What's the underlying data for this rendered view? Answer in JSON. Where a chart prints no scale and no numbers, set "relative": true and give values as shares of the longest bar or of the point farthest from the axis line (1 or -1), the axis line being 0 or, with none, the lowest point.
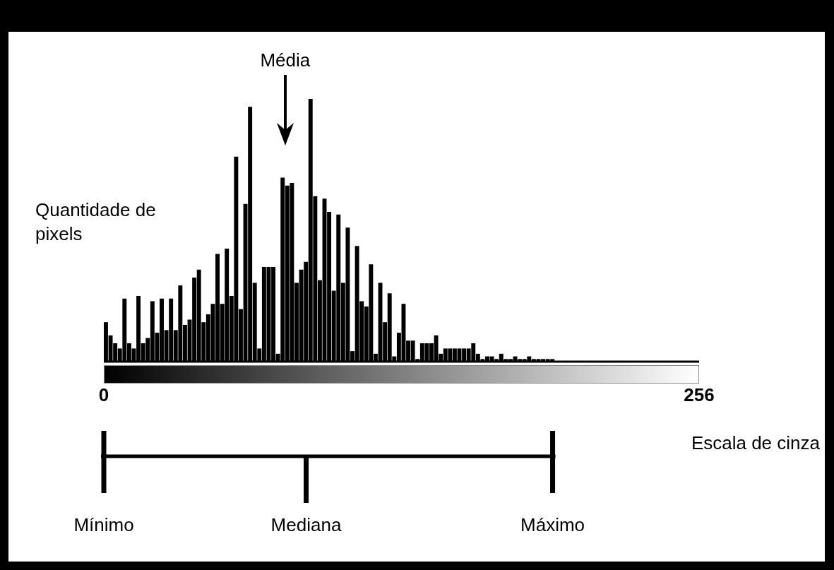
{
  "chart_data": {
    "type": "bar",
    "xlabel": "Escala de cinza",
    "ylabel": "Quantidade de pixels",
    "relative": true,
    "color": "#000000",
    "x": [
      1,
      3,
      5,
      7,
      9,
      11,
      13,
      15,
      17,
      19,
      21,
      23,
      25,
      27,
      29,
      31,
      33,
      35,
      37,
      39,
      41,
      43,
      45,
      47,
      49,
      51,
      53,
      55,
      57,
      59,
      61,
      63,
      65,
      67,
      69,
      71,
      73,
      75,
      77,
      79,
      81,
      83,
      85,
      87,
      89,
      91,
      93,
      95,
      97,
      99,
      101,
      103,
      105,
      107,
      109,
      111,
      113,
      115,
      117,
      119,
      121,
      123,
      125,
      127,
      129,
      131,
      133,
      135,
      137,
      139,
      141,
      143,
      145,
      147,
      149,
      151,
      153,
      155,
      157,
      159,
      161,
      163,
      165,
      167,
      169,
      171,
      173,
      175,
      177,
      179,
      181,
      183,
      185,
      187,
      189,
      191,
      193,
      195,
      197,
      199,
      201,
      203,
      205,
      207,
      209,
      211,
      213,
      215,
      217,
      219,
      221,
      223,
      225,
      227,
      229,
      231,
      233,
      235,
      237,
      239,
      241,
      243,
      245,
      247,
      249,
      251,
      253,
      255
    ],
    "values": [
      0.15,
      0.1,
      0.07,
      0.05,
      0.24,
      0.07,
      0.05,
      0.25,
      0.07,
      0.09,
      0.23,
      0.11,
      0.24,
      0.12,
      0.24,
      0.12,
      0.29,
      0.14,
      0.16,
      0.32,
      0.35,
      0.15,
      0.18,
      0.22,
      0.41,
      0.22,
      0.43,
      0.25,
      0.78,
      0.2,
      0.6,
      0.97,
      0.3,
      0.05,
      0.36,
      0.36,
      0.36,
      0.03,
      0.7,
      0.67,
      0.68,
      0.3,
      0.35,
      0.38,
      1,
      0.63,
      0.31,
      0.62,
      0.57,
      0.27,
      0.56,
      0.3,
      0.51,
      0.04,
      0.44,
      0.23,
      0.21,
      0.37,
      0.03,
      0.3,
      0.15,
      0.26,
      0.02,
      0.11,
      0.22,
      0.08,
      0.08,
      0.01,
      0.07,
      0.07,
      0.07,
      0.1,
      0.03,
      0.05,
      0.05,
      0.05,
      0.05,
      0.05,
      0.05,
      0.07,
      0.03,
      0.01,
      0.02,
      0.02,
      0.01,
      0.03,
      0.01,
      0.01,
      0.02,
      0.01,
      0.01,
      0.02,
      0.01,
      0.01,
      0.01,
      0.01,
      0.01,
      0,
      0,
      0,
      0,
      0,
      0,
      0,
      0,
      0,
      0,
      0,
      0,
      0,
      0,
      0,
      0,
      0,
      0,
      0,
      0,
      0,
      0,
      0,
      0,
      0,
      0,
      0,
      0,
      0,
      0,
      0
    ],
    "xlim": [
      0,
      256
    ],
    "xticks": [
      0,
      256
    ],
    "annotations": [
      {
        "text": "Média",
        "x": 78
      },
      {
        "text": "Mínimo",
        "x": 0
      },
      {
        "text": "Mediana",
        "x": 87
      },
      {
        "text": "Máximo",
        "x": 193
      }
    ]
  }
}
